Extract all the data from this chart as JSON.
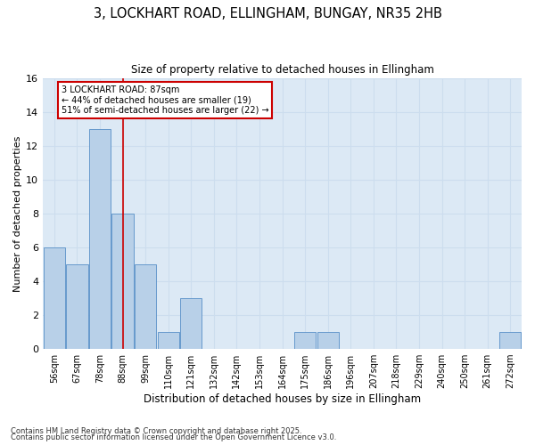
{
  "title": "3, LOCKHART ROAD, ELLINGHAM, BUNGAY, NR35 2HB",
  "subtitle": "Size of property relative to detached houses in Ellingham",
  "xlabel": "Distribution of detached houses by size in Ellingham",
  "ylabel": "Number of detached properties",
  "bar_values": [
    6,
    5,
    13,
    8,
    5,
    1,
    3,
    0,
    0,
    0,
    0,
    1,
    1,
    0,
    0,
    0,
    0,
    0,
    0,
    0,
    1
  ],
  "categories": [
    "56sqm",
    "67sqm",
    "78sqm",
    "88sqm",
    "99sqm",
    "110sqm",
    "121sqm",
    "132sqm",
    "142sqm",
    "153sqm",
    "164sqm",
    "175sqm",
    "186sqm",
    "196sqm",
    "207sqm",
    "218sqm",
    "229sqm",
    "240sqm",
    "250sqm",
    "261sqm",
    "272sqm"
  ],
  "bar_color": "#b8d0e8",
  "bar_edge_color": "#6699cc",
  "vline_x": 3,
  "vline_color": "#cc0000",
  "ylim": [
    0,
    16
  ],
  "yticks": [
    0,
    2,
    4,
    6,
    8,
    10,
    12,
    14,
    16
  ],
  "annotation_text": "3 LOCKHART ROAD: 87sqm\n← 44% of detached houses are smaller (19)\n51% of semi-detached houses are larger (22) →",
  "annotation_box_color": "#ffffff",
  "annotation_box_edge": "#cc0000",
  "footer_line1": "Contains HM Land Registry data © Crown copyright and database right 2025.",
  "footer_line2": "Contains public sector information licensed under the Open Government Licence v3.0.",
  "grid_color": "#ccddee",
  "background_color": "#dce9f5",
  "fig_background": "#ffffff"
}
